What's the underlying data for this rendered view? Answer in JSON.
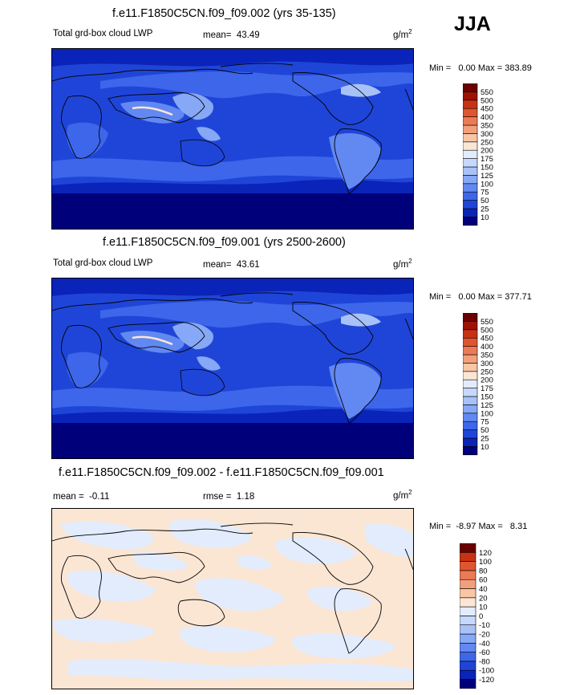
{
  "season": "JJA",
  "colors": {
    "lwp_scale": [
      "#00007a",
      "#0a23b8",
      "#1f45d8",
      "#3d66ea",
      "#6288f2",
      "#86a8f6",
      "#a8c2f8",
      "#c6d8fb",
      "#e2ecfd",
      "#fbe6d4",
      "#f8c6a4",
      "#f2a07c",
      "#ec7a55",
      "#e0552e",
      "#c83214",
      "#9e1205",
      "#6a0000"
    ],
    "diff_scale": [
      "#00007a",
      "#0a23b8",
      "#1f45d8",
      "#3d66ea",
      "#6288f2",
      "#86a8f6",
      "#a8c2f8",
      "#c6d8fb",
      "#e2ecfd",
      "#fbe6d4",
      "#f8c6a4",
      "#f2a07c",
      "#ec7a55",
      "#e0552e",
      "#c83214",
      "#6a0000"
    ]
  },
  "chart_data": [
    {
      "type": "heatmap",
      "title": "f.e11.F1850C5CN.f09_f09.002 (yrs 35-135)",
      "left_label": "Total grd-box cloud LWP",
      "mean_label": "mean=",
      "mean_value": "43.49",
      "units": "g/m",
      "units_sup": "2",
      "min_label": "Min =",
      "min_value": "0.00",
      "max_label": "Max =",
      "max_value": "383.89",
      "colorbar_levels": [
        "10",
        "25",
        "50",
        "75",
        "100",
        "125",
        "150",
        "175",
        "200",
        "250",
        "300",
        "350",
        "400",
        "450",
        "500",
        "550"
      ]
    },
    {
      "type": "heatmap",
      "title": "f.e11.F1850C5CN.f09_f09.001 (yrs 2500-2600)",
      "left_label": "Total grd-box cloud LWP",
      "mean_label": "mean=",
      "mean_value": "43.61",
      "units": "g/m",
      "units_sup": "2",
      "min_label": "Min =",
      "min_value": "0.00",
      "max_label": "Max =",
      "max_value": "377.71",
      "colorbar_levels": [
        "10",
        "25",
        "50",
        "75",
        "100",
        "125",
        "150",
        "175",
        "200",
        "250",
        "300",
        "350",
        "400",
        "450",
        "500",
        "550"
      ]
    },
    {
      "type": "heatmap",
      "title": "f.e11.F1850C5CN.f09_f09.002 - f.e11.F1850C5CN.f09_f09.001",
      "mean_label": "mean =",
      "mean_value": "-0.11",
      "rmse_label": "rmse =",
      "rmse_value": "1.18",
      "units": "g/m",
      "units_sup": "2",
      "min_label": "Min =",
      "min_value": "-8.97",
      "max_label": "Max =",
      "max_value": "8.31",
      "colorbar_levels": [
        "-120",
        "-100",
        "-80",
        "-60",
        "-40",
        "-20",
        "-10",
        "0",
        "10",
        "20",
        "40",
        "60",
        "80",
        "100",
        "120"
      ]
    }
  ]
}
